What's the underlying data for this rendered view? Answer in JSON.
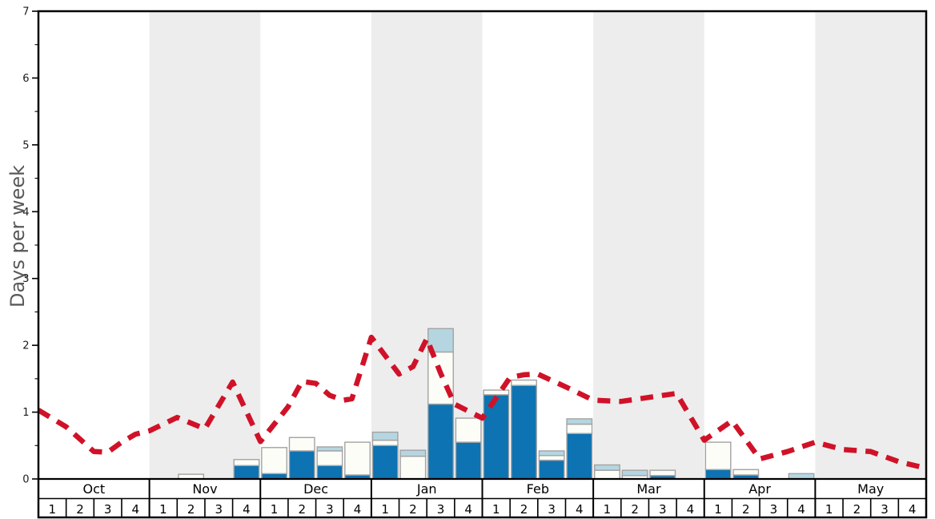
{
  "chart_data": {
    "type": "bar",
    "subtype": "stacked-bars-with-dashed-line",
    "title": "",
    "xlabel": "",
    "ylabel": "Days per week",
    "ylim": [
      0,
      7
    ],
    "grid": "off",
    "legend": "none",
    "y_major_ticks": [
      "0",
      "1",
      "2",
      "3",
      "4",
      "5",
      "6",
      "7"
    ],
    "y_minor_tick_step": 0.5,
    "x_axis": {
      "months": [
        "Oct",
        "Nov",
        "Dec",
        "Jan",
        "Feb",
        "Mar",
        "Apr",
        "May"
      ],
      "weeks_per_month": [
        "1",
        "2",
        "3",
        "4"
      ],
      "shaded_month_indices": [
        1,
        3,
        5,
        7
      ]
    },
    "categories": [
      "Oct-1",
      "Oct-2",
      "Oct-3",
      "Oct-4",
      "Nov-1",
      "Nov-2",
      "Nov-3",
      "Nov-4",
      "Dec-1",
      "Dec-2",
      "Dec-3",
      "Dec-4",
      "Jan-1",
      "Jan-2",
      "Jan-3",
      "Jan-4",
      "Feb-1",
      "Feb-2",
      "Feb-3",
      "Feb-4",
      "Mar-1",
      "Mar-2",
      "Mar-3",
      "Mar-4",
      "Apr-1",
      "Apr-2",
      "Apr-3",
      "Apr-4",
      "May-1",
      "May-2",
      "May-3",
      "May-4"
    ],
    "series": [
      {
        "name": "dark-blue-segment",
        "color": "#0d73b2",
        "values": [
          0,
          0,
          0,
          0,
          0,
          0,
          0,
          0.2,
          0.08,
          0.42,
          0.2,
          0.06,
          0.5,
          0,
          1.12,
          0.55,
          1.26,
          1.4,
          0.28,
          0.68,
          0,
          0,
          0.05,
          0,
          0.14,
          0.06,
          0,
          0,
          0,
          0,
          0,
          0
        ]
      },
      {
        "name": "white-segment",
        "color": "#fdfdf8",
        "values": [
          0,
          0,
          0,
          0,
          0,
          0.07,
          0,
          0.09,
          0.39,
          0.2,
          0.22,
          0.49,
          0.08,
          0.34,
          0.78,
          0.36,
          0.07,
          0.08,
          0.07,
          0.14,
          0.13,
          0.05,
          0.08,
          0,
          0.41,
          0.08,
          0,
          0,
          0,
          0,
          0,
          0
        ]
      },
      {
        "name": "light-blue-segment",
        "color": "#b5d6e1",
        "values": [
          0,
          0,
          0,
          0,
          0,
          0,
          0,
          0,
          0,
          0,
          0.06,
          0,
          0.12,
          0.09,
          0.35,
          0,
          0,
          0,
          0.07,
          0.08,
          0.08,
          0.08,
          0,
          0,
          0,
          0,
          0,
          0.08,
          0,
          0,
          0,
          0
        ]
      }
    ],
    "line_series": {
      "name": "red-dashed-trend",
      "color": "#d01228",
      "style": "dashed",
      "points_week_units": [
        [
          0,
          1.03
        ],
        [
          1,
          0.78
        ],
        [
          2,
          0.41
        ],
        [
          2.5,
          0.4
        ],
        [
          3,
          0.55
        ],
        [
          3.5,
          0.67
        ],
        [
          4,
          0.72
        ],
        [
          5,
          0.92
        ],
        [
          6,
          0.75
        ],
        [
          7,
          1.45
        ],
        [
          8,
          0.56
        ],
        [
          9,
          1.08
        ],
        [
          9.5,
          1.46
        ],
        [
          10,
          1.43
        ],
        [
          10.5,
          1.25
        ],
        [
          11,
          1.18
        ],
        [
          11.3,
          1.2
        ],
        [
          12,
          2.12
        ],
        [
          13,
          1.57
        ],
        [
          13.5,
          1.68
        ],
        [
          14,
          2.1
        ],
        [
          14.5,
          1.58
        ],
        [
          15,
          1.12
        ],
        [
          16,
          0.91
        ],
        [
          17,
          1.52
        ],
        [
          17.5,
          1.56
        ],
        [
          18,
          1.57
        ],
        [
          19,
          1.38
        ],
        [
          20,
          1.18
        ],
        [
          21,
          1.16
        ],
        [
          22,
          1.22
        ],
        [
          23,
          1.28
        ],
        [
          24,
          0.58
        ],
        [
          25,
          0.87
        ],
        [
          26,
          0.3
        ],
        [
          27,
          0.41
        ],
        [
          28,
          0.55
        ],
        [
          29,
          0.44
        ],
        [
          30,
          0.41
        ],
        [
          31,
          0.26
        ],
        [
          32,
          0.16
        ]
      ]
    },
    "colors": {
      "month_band": "#ededed",
      "bar_border": "#a3a3a3",
      "frame": "#000000",
      "tick_label": "#1a1a1a",
      "ylabel_color": "#595959",
      "background": "#ffffff"
    }
  }
}
